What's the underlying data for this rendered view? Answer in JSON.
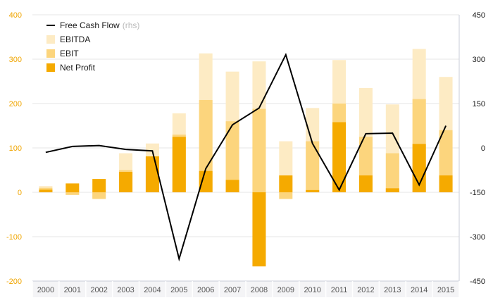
{
  "chart_data": {
    "type": "bar",
    "categories": [
      "2000",
      "2001",
      "2002",
      "2003",
      "2004",
      "2005",
      "2006",
      "2007",
      "2008",
      "2009",
      "2010",
      "2011",
      "2012",
      "2013",
      "2014",
      "2015"
    ],
    "series": [
      {
        "name": "EBITDA",
        "values": [
          14,
          -6,
          -13,
          88,
          110,
          178,
          313,
          272,
          295,
          115,
          190,
          298,
          235,
          198,
          323,
          260
        ],
        "color": "#fdebc4"
      },
      {
        "name": "EBIT",
        "values": [
          10,
          -6,
          -15,
          50,
          80,
          130,
          208,
          160,
          188,
          -15,
          115,
          200,
          125,
          88,
          210,
          140
        ],
        "color": "#fcd57d"
      },
      {
        "name": "Net Profit",
        "values": [
          6,
          20,
          30,
          46,
          81,
          125,
          48,
          28,
          -167,
          38,
          5,
          158,
          38,
          9,
          109,
          38
        ],
        "color": "#f5aa00"
      },
      {
        "name": "Free Cash Flow",
        "suffix": "(rhs)",
        "axis": "right",
        "values": [
          -15,
          5,
          8,
          -5,
          -10,
          -375,
          -70,
          78,
          135,
          315,
          15,
          -142,
          48,
          50,
          -125,
          75
        ],
        "color": "#000000"
      }
    ],
    "left_axis": {
      "ylim": [
        -200,
        400
      ],
      "ticks": [
        "400",
        "300",
        "200",
        "100",
        "0",
        "-100",
        "-200"
      ]
    },
    "right_axis": {
      "ylim": [
        -450,
        450
      ],
      "ticks": [
        "450",
        "300",
        "150",
        "0",
        "-150",
        "-300",
        "-450"
      ]
    },
    "grid": true,
    "legend": "top-left"
  }
}
